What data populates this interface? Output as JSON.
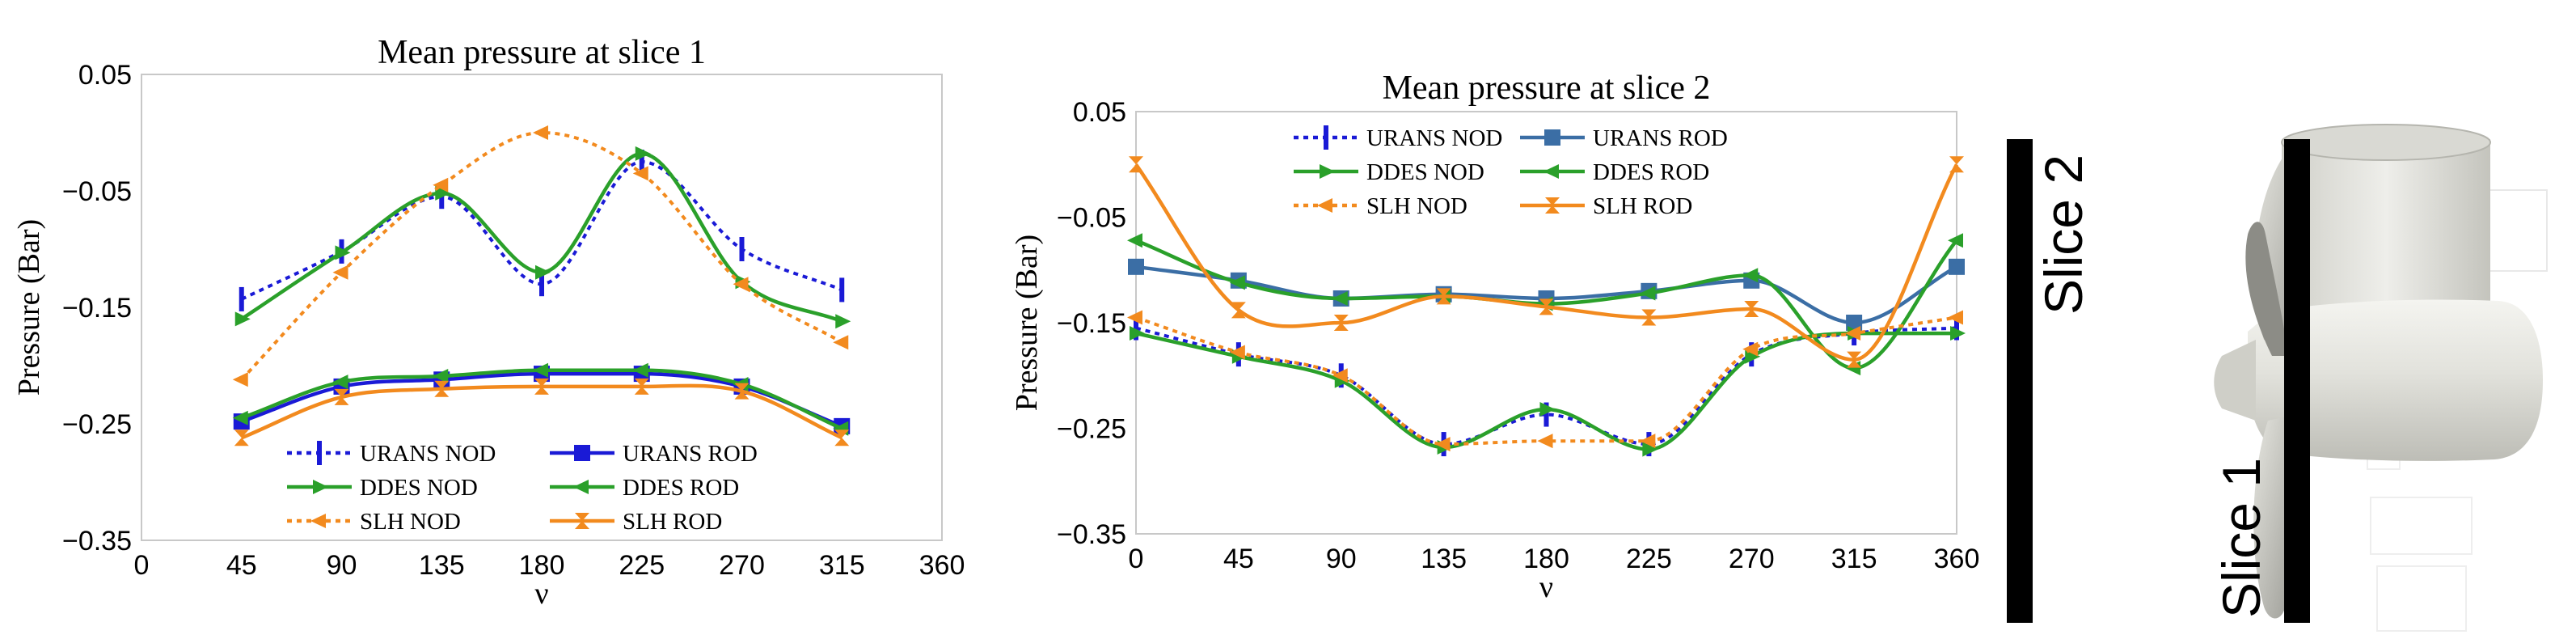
{
  "chart_data": [
    {
      "type": "line",
      "title": "Mean pressure at slice 1",
      "xlabel": "ν",
      "ylabel": "Pressure (Bar)",
      "xlim": [
        0,
        360
      ],
      "ylim": [
        -0.35,
        0.05
      ],
      "xticks": [
        "0",
        "45",
        "90",
        "135",
        "180",
        "225",
        "270",
        "315",
        "360"
      ],
      "yticks": [
        "0.05",
        "-0.05",
        "-0.15",
        "-0.25",
        "-0.35"
      ],
      "x": [
        45,
        90,
        135,
        180,
        225,
        270,
        315
      ],
      "series": [
        {
          "name": "URANS NOD",
          "color": "#1a1ad6",
          "dash": true,
          "marker": "vbar",
          "values": [
            -0.143,
            -0.102,
            -0.055,
            -0.13,
            -0.025,
            -0.1,
            -0.135
          ]
        },
        {
          "name": "URANS ROD",
          "color": "#1a1ad6",
          "dash": false,
          "marker": "square",
          "values": [
            -0.248,
            -0.218,
            -0.212,
            -0.207,
            -0.207,
            -0.218,
            -0.252
          ]
        },
        {
          "name": "DDES NOD",
          "color": "#2aa02a",
          "dash": false,
          "marker": "triright",
          "values": [
            -0.16,
            -0.103,
            -0.052,
            -0.12,
            -0.018,
            -0.128,
            -0.162
          ]
        },
        {
          "name": "DDES ROD",
          "color": "#2aa02a",
          "dash": false,
          "marker": "trileft",
          "values": [
            -0.245,
            -0.214,
            -0.209,
            -0.204,
            -0.204,
            -0.216,
            -0.254
          ]
        },
        {
          "name": "SLH NOD",
          "color": "#f28a1e",
          "dash": true,
          "marker": "trileft",
          "values": [
            -0.212,
            -0.12,
            -0.045,
            0.0,
            -0.035,
            -0.13,
            -0.18
          ]
        },
        {
          "name": "SLH ROD",
          "color": "#f28a1e",
          "dash": false,
          "marker": "hourglass",
          "values": [
            -0.262,
            -0.227,
            -0.22,
            -0.218,
            -0.218,
            -0.222,
            -0.262
          ]
        }
      ]
    },
    {
      "type": "line",
      "title": "Mean pressure at slice 2",
      "xlabel": "ν",
      "ylabel": "Pressure (Bar)",
      "xlim": [
        0,
        360
      ],
      "ylim": [
        -0.35,
        0.05
      ],
      "xticks": [
        "0",
        "45",
        "90",
        "135",
        "180",
        "225",
        "270",
        "315",
        "360"
      ],
      "yticks": [
        "0.05",
        "-0.05",
        "-0.15",
        "-0.25",
        "-0.35"
      ],
      "x": [
        0,
        45,
        90,
        135,
        180,
        225,
        270,
        315,
        360
      ],
      "series": [
        {
          "name": "URANS NOD",
          "color": "#1a1ad6",
          "dash": true,
          "marker": "vbar",
          "values": [
            -0.155,
            -0.18,
            -0.2,
            -0.265,
            -0.237,
            -0.265,
            -0.18,
            -0.16,
            -0.155
          ]
        },
        {
          "name": "URANS ROD",
          "color": "#3b6ea5",
          "dash": false,
          "marker": "square",
          "values": [
            -0.097,
            -0.11,
            -0.127,
            -0.123,
            -0.127,
            -0.12,
            -0.11,
            -0.15,
            -0.097
          ]
        },
        {
          "name": "DDES NOD",
          "color": "#2aa02a",
          "dash": false,
          "marker": "triright",
          "values": [
            -0.16,
            -0.182,
            -0.205,
            -0.268,
            -0.232,
            -0.27,
            -0.182,
            -0.16,
            -0.16
          ]
        },
        {
          "name": "DDES ROD",
          "color": "#2aa02a",
          "dash": false,
          "marker": "trileft",
          "values": [
            -0.072,
            -0.112,
            -0.127,
            -0.125,
            -0.132,
            -0.122,
            -0.105,
            -0.193,
            -0.072
          ]
        },
        {
          "name": "SLH NOD",
          "color": "#f28a1e",
          "dash": true,
          "marker": "trileft",
          "values": [
            -0.145,
            -0.178,
            -0.2,
            -0.265,
            -0.262,
            -0.262,
            -0.175,
            -0.16,
            -0.145
          ]
        },
        {
          "name": "SLH ROD",
          "color": "#f28a1e",
          "dash": false,
          "marker": "hourglass",
          "values": [
            0.0,
            -0.138,
            -0.15,
            -0.125,
            -0.135,
            -0.145,
            -0.137,
            -0.185,
            0.0
          ]
        }
      ]
    }
  ],
  "render": {
    "slice2_label": "Slice 2",
    "slice1_label": "Slice 1"
  }
}
